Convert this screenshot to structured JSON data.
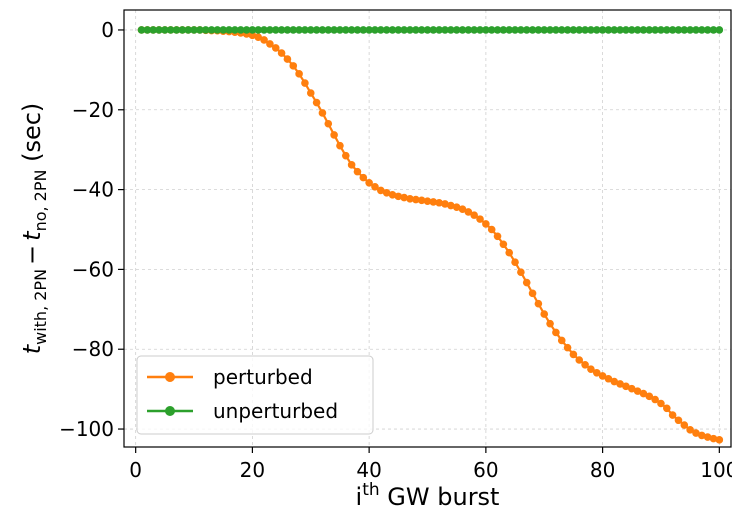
{
  "chart_data": {
    "type": "line",
    "title": "",
    "xlabel": {
      "base": "i",
      "sup": "th",
      "rest": " GW burst"
    },
    "ylabel": {
      "var1": "t",
      "sub1": "with, 2PN",
      "minus": "−",
      "var2": "t",
      "sub2": "no, 2PN",
      "unit": " (sec)"
    },
    "xlim": [
      -2,
      102
    ],
    "ylim": [
      -104.5,
      5
    ],
    "xticks": [
      0,
      20,
      40,
      60,
      80,
      100
    ],
    "xtick_labels": [
      "0",
      "20",
      "40",
      "60",
      "80",
      "100"
    ],
    "yticks": [
      0,
      -20,
      -40,
      -60,
      -80,
      -100
    ],
    "ytick_labels": [
      "0",
      "−20",
      "−40",
      "−60",
      "−80",
      "−100"
    ],
    "grid": true,
    "legend_position": "lower-left",
    "colors": {
      "perturbed": "#ff7f0e",
      "unperturbed": "#2ca02c"
    },
    "x": [
      1,
      2,
      3,
      4,
      5,
      6,
      7,
      8,
      9,
      10,
      11,
      12,
      13,
      14,
      15,
      16,
      17,
      18,
      19,
      20,
      21,
      22,
      23,
      24,
      25,
      26,
      27,
      28,
      29,
      30,
      31,
      32,
      33,
      34,
      35,
      36,
      37,
      38,
      39,
      40,
      41,
      42,
      43,
      44,
      45,
      46,
      47,
      48,
      49,
      50,
      51,
      52,
      53,
      54,
      55,
      56,
      57,
      58,
      59,
      60,
      61,
      62,
      63,
      64,
      65,
      66,
      67,
      68,
      69,
      70,
      71,
      72,
      73,
      74,
      75,
      76,
      77,
      78,
      79,
      80,
      81,
      82,
      83,
      84,
      85,
      86,
      87,
      88,
      89,
      90,
      91,
      92,
      93,
      94,
      95,
      96,
      97,
      98,
      99,
      100
    ],
    "series": [
      {
        "name": "perturbed",
        "values": [
          0,
          0,
          0,
          0,
          0,
          0,
          0,
          0,
          0,
          0,
          0,
          -0.1,
          -0.15,
          -0.2,
          -0.3,
          -0.4,
          -0.55,
          -0.75,
          -1.0,
          -1.35,
          -1.8,
          -2.5,
          -3.5,
          -4.5,
          -5.8,
          -7.3,
          -9.0,
          -11.0,
          -13.3,
          -15.8,
          -18.2,
          -20.8,
          -23.5,
          -26.3,
          -29.0,
          -31.5,
          -33.8,
          -35.5,
          -37.0,
          -38.3,
          -39.3,
          -40.2,
          -40.8,
          -41.3,
          -41.7,
          -42.0,
          -42.3,
          -42.5,
          -42.7,
          -42.9,
          -43.1,
          -43.3,
          -43.6,
          -44.0,
          -44.4,
          -44.9,
          -45.6,
          -46.4,
          -47.4,
          -48.6,
          -50.0,
          -51.7,
          -53.7,
          -55.8,
          -58.2,
          -60.7,
          -63.3,
          -66.0,
          -68.6,
          -71.2,
          -73.6,
          -75.8,
          -77.8,
          -79.6,
          -81.3,
          -82.7,
          -83.9,
          -85.0,
          -85.9,
          -86.7,
          -87.4,
          -88.1,
          -88.7,
          -89.3,
          -89.9,
          -90.5,
          -91.1,
          -91.8,
          -92.6,
          -93.6,
          -94.8,
          -96.5,
          -97.8,
          -99.0,
          -100.2,
          -101.0,
          -101.6,
          -102.0,
          -102.4,
          -102.7
        ],
        "color": "#ff7f0e"
      },
      {
        "name": "unperturbed",
        "values": [
          0,
          0,
          0,
          0,
          0,
          0,
          0,
          0,
          0,
          0,
          0,
          0,
          0,
          0,
          0,
          0,
          0,
          0,
          0,
          0,
          0,
          0,
          0,
          0,
          0,
          0,
          0,
          0,
          0,
          0,
          0,
          0,
          0,
          0,
          0,
          0,
          0,
          0,
          0,
          0,
          0,
          0,
          0,
          0,
          0,
          0,
          0,
          0,
          0,
          0,
          0,
          0,
          0,
          0,
          0,
          0,
          0,
          0,
          0,
          0,
          0,
          0,
          0,
          0,
          0,
          0,
          0,
          0,
          0,
          0,
          0,
          0,
          0,
          0,
          0,
          0,
          0,
          0,
          0,
          0,
          0,
          0,
          0,
          0,
          0,
          0,
          0,
          0,
          0,
          0,
          0,
          0,
          0,
          0,
          0,
          0,
          0,
          0,
          0,
          0
        ],
        "color": "#2ca02c"
      }
    ],
    "legend": [
      {
        "label": "perturbed",
        "color": "#ff7f0e"
      },
      {
        "label": "unperturbed",
        "color": "#2ca02c"
      }
    ]
  }
}
